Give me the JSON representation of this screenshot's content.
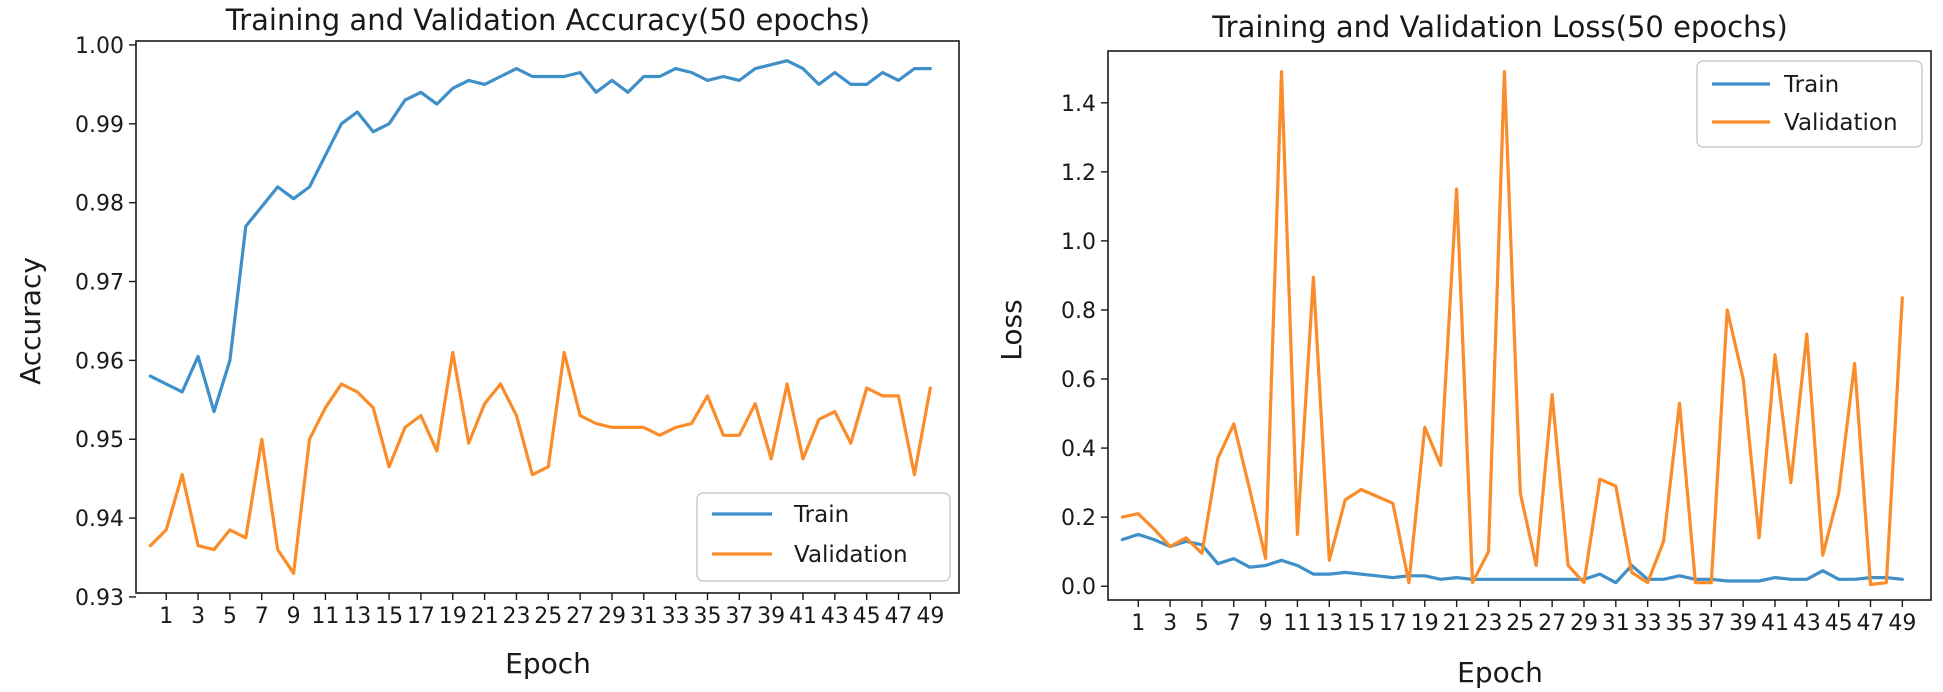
{
  "chart_data": [
    {
      "type": "line",
      "title": "Training and Validation Accuracy(50 epochs)",
      "xlabel": "Epoch",
      "ylabel": "Accuracy",
      "xlim": [
        -0.9,
        50.8
      ],
      "ylim": [
        0.9305,
        1.0005
      ],
      "xticks": [
        1,
        3,
        5,
        7,
        9,
        11,
        13,
        15,
        17,
        19,
        21,
        23,
        25,
        27,
        29,
        31,
        33,
        35,
        37,
        39,
        41,
        43,
        45,
        47,
        49
      ],
      "yticks": [
        0.93,
        0.94,
        0.95,
        0.96,
        0.97,
        0.98,
        0.99,
        1.0
      ],
      "ytick_labels": [
        "0.93",
        "0.94",
        "0.95",
        "0.96",
        "0.97",
        "0.98",
        "0.99",
        "1.00"
      ],
      "legend": "lower-right",
      "x": [
        0,
        1,
        2,
        3,
        4,
        5,
        6,
        7,
        8,
        9,
        10,
        11,
        12,
        13,
        14,
        15,
        16,
        17,
        18,
        19,
        20,
        21,
        22,
        23,
        24,
        25,
        26,
        27,
        28,
        29,
        30,
        31,
        32,
        33,
        34,
        35,
        36,
        37,
        38,
        39,
        40,
        41,
        42,
        43,
        44,
        45,
        46,
        47,
        48,
        49
      ],
      "series": [
        {
          "name": "Train",
          "color": "#3f8fc9",
          "values": [
            0.958,
            0.957,
            0.956,
            0.9605,
            0.9535,
            0.96,
            0.977,
            0.9795,
            0.982,
            0.9805,
            0.982,
            0.986,
            0.99,
            0.9915,
            0.989,
            0.99,
            0.993,
            0.994,
            0.9925,
            0.9945,
            0.9955,
            0.995,
            0.996,
            0.997,
            0.996,
            0.996,
            0.996,
            0.9965,
            0.994,
            0.9955,
            0.994,
            0.996,
            0.996,
            0.997,
            0.9965,
            0.9955,
            0.996,
            0.9955,
            0.997,
            0.9975,
            0.998,
            0.997,
            0.995,
            0.9965,
            0.995,
            0.995,
            0.9965,
            0.9955,
            0.997,
            0.997
          ]
        },
        {
          "name": "Validation",
          "color": "#fb8c2a",
          "values": [
            0.9365,
            0.9385,
            0.9455,
            0.9365,
            0.936,
            0.9385,
            0.9375,
            0.95,
            0.936,
            0.933,
            0.95,
            0.954,
            0.957,
            0.956,
            0.954,
            0.9465,
            0.9515,
            0.953,
            0.9485,
            0.961,
            0.9495,
            0.9545,
            0.957,
            0.953,
            0.9455,
            0.9465,
            0.961,
            0.953,
            0.952,
            0.9515,
            0.9515,
            0.9515,
            0.9505,
            0.9515,
            0.952,
            0.9555,
            0.9505,
            0.9505,
            0.9545,
            0.9475,
            0.957,
            0.9475,
            0.9525,
            0.9535,
            0.9495,
            0.9565,
            0.9555,
            0.9555,
            0.9455,
            0.9565
          ]
        }
      ]
    },
    {
      "type": "line",
      "title": "Training and Validation Loss(50 epochs)",
      "xlabel": "Epoch",
      "ylabel": "Loss",
      "xlim": [
        -0.9,
        50.8
      ],
      "ylim": [
        -0.04,
        1.55
      ],
      "xticks": [
        1,
        3,
        5,
        7,
        9,
        11,
        13,
        15,
        17,
        19,
        21,
        23,
        25,
        27,
        29,
        31,
        33,
        35,
        37,
        39,
        41,
        43,
        45,
        47,
        49
      ],
      "yticks": [
        0,
        0.2,
        0.4,
        0.6,
        0.8,
        1.0,
        1.2,
        1.4
      ],
      "ytick_labels": [
        "0.0",
        "0.2",
        "0.4",
        "0.6",
        "0.8",
        "1.0",
        "1.2",
        "1.4"
      ],
      "legend": "top-right",
      "x": [
        0,
        1,
        2,
        3,
        4,
        5,
        6,
        7,
        8,
        9,
        10,
        11,
        12,
        13,
        14,
        15,
        16,
        17,
        18,
        19,
        20,
        21,
        22,
        23,
        24,
        25,
        26,
        27,
        28,
        29,
        30,
        31,
        32,
        33,
        34,
        35,
        36,
        37,
        38,
        39,
        40,
        41,
        42,
        43,
        44,
        45,
        46,
        47,
        48,
        49
      ],
      "series": [
        {
          "name": "Train",
          "color": "#3f8fc9",
          "values": [
            0.135,
            0.15,
            0.135,
            0.115,
            0.13,
            0.12,
            0.065,
            0.08,
            0.055,
            0.06,
            0.075,
            0.06,
            0.035,
            0.035,
            0.04,
            0.035,
            0.03,
            0.025,
            0.03,
            0.03,
            0.02,
            0.025,
            0.02,
            0.02,
            0.02,
            0.02,
            0.02,
            0.02,
            0.02,
            0.02,
            0.035,
            0.01,
            0.06,
            0.02,
            0.02,
            0.03,
            0.02,
            0.02,
            0.015,
            0.015,
            0.015,
            0.025,
            0.02,
            0.02,
            0.045,
            0.02,
            0.02,
            0.025,
            0.025,
            0.02
          ]
        },
        {
          "name": "Validation",
          "color": "#fb8c2a",
          "values": [
            0.2,
            0.21,
            0.165,
            0.115,
            0.14,
            0.095,
            0.37,
            0.47,
            0.28,
            0.08,
            1.49,
            0.15,
            0.895,
            0.075,
            0.25,
            0.28,
            0.26,
            0.24,
            0.01,
            0.46,
            0.35,
            1.15,
            0.01,
            0.1,
            1.49,
            0.27,
            0.06,
            0.555,
            0.06,
            0.01,
            0.31,
            0.29,
            0.04,
            0.01,
            0.13,
            0.53,
            0.01,
            0.01,
            0.8,
            0.6,
            0.14,
            0.67,
            0.3,
            0.73,
            0.09,
            0.27,
            0.645,
            0.005,
            0.01,
            0.835
          ]
        }
      ]
    }
  ]
}
